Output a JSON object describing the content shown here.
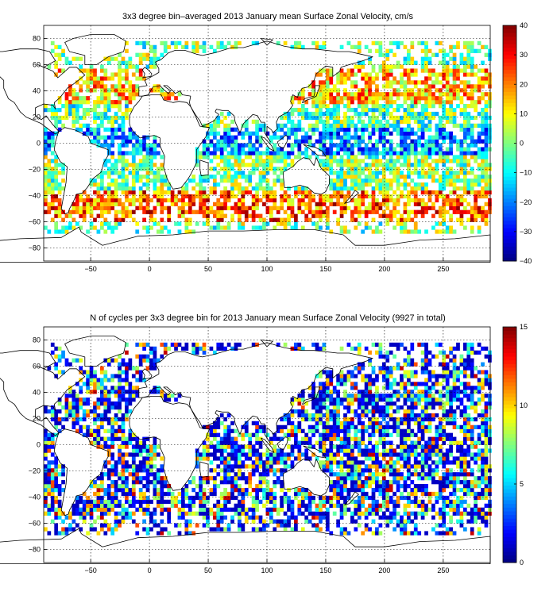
{
  "chart_data": [
    {
      "type": "heatmap",
      "title": "3x3 degree bin–averaged 2013 January mean Surface Zonal Velocity, cm/s",
      "xlabel": "",
      "ylabel": "",
      "xlim": [
        -90,
        290
      ],
      "ylim": [
        -90,
        90
      ],
      "bin_size_deg": 3,
      "x_ticks": [
        -50,
        0,
        50,
        100,
        150,
        200,
        250
      ],
      "x_tick_labels": [
        "−50",
        "0",
        "50",
        "100",
        "150",
        "200",
        "250"
      ],
      "y_ticks": [
        -80,
        -60,
        -40,
        -20,
        0,
        20,
        40,
        60,
        80
      ],
      "y_tick_labels": [
        "−80",
        "−60",
        "−40",
        "−20",
        "0",
        "20",
        "40",
        "60",
        "80"
      ],
      "grid": true,
      "colormap": "jet",
      "colorbar": {
        "min": -40,
        "max": 40,
        "ticks": [
          -40,
          -30,
          -20,
          -10,
          0,
          10,
          20,
          30,
          40
        ],
        "tick_labels": [
          "−40",
          "−30",
          "−20",
          "−10",
          "0",
          "10",
          "20",
          "30",
          "40"
        ],
        "location": "right"
      },
      "zonal_pattern": [
        {
          "lat_band": [
            30,
            55
          ],
          "mean_velocity": 20
        },
        {
          "lat_band": [
            -10,
            10
          ],
          "mean_velocity": -20
        },
        {
          "lat_band": [
            -60,
            -38
          ],
          "mean_velocity": 25
        }
      ]
    },
    {
      "type": "heatmap",
      "title": "N of cycles per 3x3 degree bin for 2013 January mean Surface Zonal Velocity (9927 in total)",
      "xlabel": "",
      "ylabel": "",
      "xlim": [
        -90,
        290
      ],
      "ylim": [
        -90,
        90
      ],
      "bin_size_deg": 3,
      "x_ticks": [
        -50,
        0,
        50,
        100,
        150,
        200,
        250
      ],
      "x_tick_labels": [
        "−50",
        "0",
        "50",
        "100",
        "150",
        "200",
        "250"
      ],
      "y_ticks": [
        -80,
        -60,
        -40,
        -20,
        0,
        20,
        40,
        60,
        80
      ],
      "y_tick_labels": [
        "−80",
        "−60",
        "−40",
        "−20",
        "0",
        "20",
        "40",
        "60",
        "80"
      ],
      "grid": true,
      "colormap": "jet",
      "total_cycles": 9927,
      "colorbar": {
        "min": 0,
        "max": 15,
        "ticks": [
          0,
          5,
          10,
          15
        ],
        "tick_labels": [
          "0",
          "5",
          "10",
          "15"
        ],
        "location": "right"
      }
    }
  ]
}
